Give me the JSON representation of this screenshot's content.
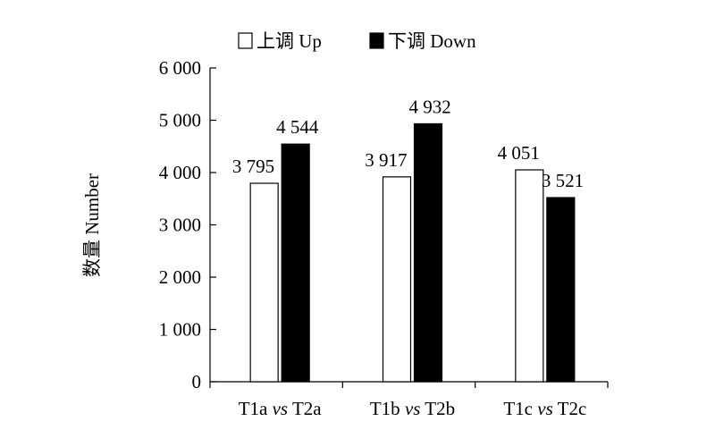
{
  "chart_data": {
    "type": "bar",
    "title": "",
    "ylabel": "数量  Number",
    "xlabel": "",
    "ylim": [
      0,
      6000
    ],
    "yticks": [
      "0",
      "1 000",
      "2 000",
      "3 000",
      "4 000",
      "5 000",
      "6 000"
    ],
    "ytick_values": [
      0,
      1000,
      2000,
      3000,
      4000,
      5000,
      6000
    ],
    "categories": [
      {
        "prefix": "T1a",
        "vs": "vs",
        "suffix": "T2a"
      },
      {
        "prefix": "T1b",
        "vs": "vs",
        "suffix": "T2b"
      },
      {
        "prefix": "T1c",
        "vs": "vs",
        "suffix": "T2c"
      }
    ],
    "series": [
      {
        "name": "上调 Up",
        "color": "#ffffff",
        "values": [
          3795,
          3917,
          4051
        ],
        "labels": [
          "3 795",
          "3 917",
          "4 051"
        ]
      },
      {
        "name": "下调 Down",
        "color": "#000000",
        "values": [
          4544,
          4932,
          3521
        ],
        "labels": [
          "4 544",
          "4 932",
          "3 521"
        ]
      }
    ],
    "legend": "top",
    "grid": false
  }
}
